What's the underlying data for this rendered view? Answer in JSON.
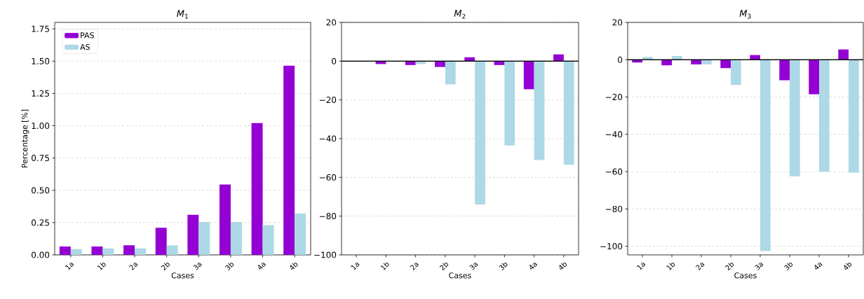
{
  "chart_data": [
    {
      "type": "bar",
      "title": "*M*$_{1}$",
      "xlabel": "Cases",
      "ylabel": "Percentage [%]",
      "categories": [
        "1a",
        "1b",
        "2a",
        "2b",
        "3a",
        "3b",
        "4a",
        "4b"
      ],
      "series": [
        {
          "name": "PAS",
          "color": "#9400d3",
          "values": [
            0.065,
            0.065,
            0.075,
            0.21,
            0.31,
            0.545,
            1.02,
            1.465
          ]
        },
        {
          "name": "AS",
          "color": "#add8e6",
          "values": [
            0.045,
            0.05,
            0.05,
            0.075,
            0.255,
            0.255,
            0.23,
            0.32
          ]
        }
      ],
      "ylim": [
        0,
        1.8
      ],
      "yticks": [
        {
          "value": 0,
          "label": "0.00"
        },
        {
          "value": 0.25,
          "label": "0.25"
        },
        {
          "value": 0.5,
          "label": "0.50"
        },
        {
          "value": 0.75,
          "label": "0.75"
        },
        {
          "value": 1,
          "label": "1.00"
        },
        {
          "value": 1.25,
          "label": "1.25"
        },
        {
          "value": 1.5,
          "label": "1.50"
        },
        {
          "value": 1.75,
          "label": "1.75"
        }
      ],
      "grid": "y",
      "legend": "top left"
    },
    {
      "type": "bar",
      "title": "*M*$_{2}$",
      "xlabel": "Cases",
      "categories": [
        "1a",
        "1b",
        "2a",
        "2b",
        "3a",
        "3b",
        "4a",
        "4b"
      ],
      "series": [
        {
          "color": "#9400d3",
          "values": [
            0,
            -1.5,
            -2,
            -3,
            2,
            -2,
            -14.5,
            3.5
          ]
        },
        {
          "color": "#add8e6",
          "values": [
            0,
            null,
            -1.5,
            -12,
            -74,
            -43.5,
            -51,
            -53.5
          ]
        }
      ],
      "ylim": [
        -100,
        20
      ],
      "yticks": [
        {
          "value": -100,
          "label": "−100"
        },
        {
          "value": -80,
          "label": "−80"
        },
        {
          "value": -60,
          "label": "−60"
        },
        {
          "value": -40,
          "label": "−40"
        },
        {
          "value": -20,
          "label": "−20"
        },
        0,
        20
      ],
      "grid": "y",
      "ref_lines": [
        {
          "axis": "y",
          "value": 0,
          "color": "#000000"
        }
      ]
    },
    {
      "type": "bar",
      "title": "*M*$_{3}$",
      "xlabel": "Cases",
      "categories": [
        "1a",
        "1b",
        "2a",
        "2b",
        "3a",
        "3b",
        "4a",
        "4b"
      ],
      "series": [
        {
          "color": "#9400d3",
          "values": [
            -1.5,
            -3,
            -2.5,
            -4.5,
            2.5,
            -11,
            -18.5,
            5.5
          ]
        },
        {
          "color": "#add8e6",
          "values": [
            1.5,
            2,
            -2.5,
            -13.5,
            -102.5,
            -62.5,
            -60,
            -60.5
          ]
        }
      ],
      "ylim": [
        -104.6,
        20
      ],
      "yticks": [
        {
          "value": -100,
          "label": "−100"
        },
        {
          "value": -80,
          "label": "−80"
        },
        {
          "value": -60,
          "label": "−60"
        },
        {
          "value": -40,
          "label": "−40"
        },
        {
          "value": -20,
          "label": "−20"
        },
        0,
        20
      ],
      "grid": "y",
      "ref_lines": [
        {
          "axis": "y",
          "value": 0,
          "color": "#000000"
        }
      ]
    }
  ]
}
